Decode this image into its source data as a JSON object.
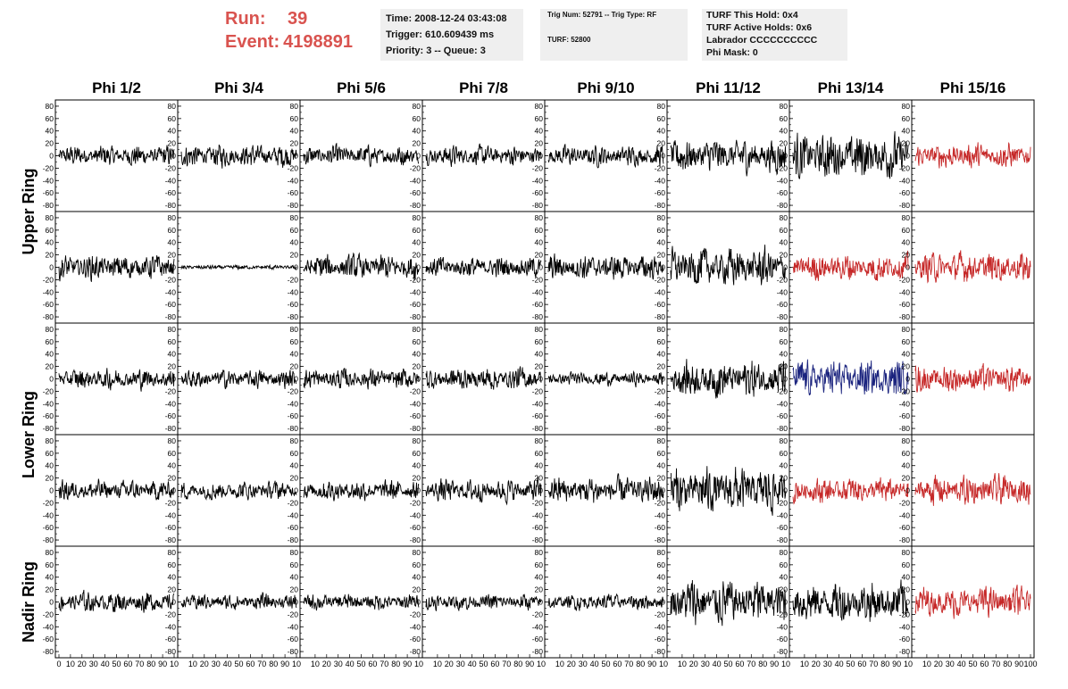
{
  "run_info": {
    "run_label": "Run:",
    "run_value": "39",
    "event_label": "Event:",
    "event_value": "4198891",
    "color": "#d9534f"
  },
  "time_box": {
    "time": "Time: 2008-12-24 03:43:08",
    "trigger": "Trigger: 610.609439 ms",
    "priority": "Priority: 3 -- Queue: 3"
  },
  "trig_box": {
    "trig": "Trig Num: 52791 -- Trig Type: RF",
    "turf": "TURF: 52800"
  },
  "turf_box": {
    "this_hold": "TURF This Hold: 0x4",
    "active_holds": "TURF Active Holds: 0x6",
    "labrador": "Labrador CCCCCCCCCC",
    "phi_mask": "Phi Mask: 0"
  },
  "chart_data": {
    "type": "line",
    "columns": [
      "Phi 1/2",
      "Phi 3/4",
      "Phi 5/6",
      "Phi 7/8",
      "Phi 9/10",
      "Phi 11/12",
      "Phi 13/14",
      "Phi 15/16"
    ],
    "rows": [
      {
        "label": "Upper Ring",
        "span": [
          0,
          1
        ]
      },
      {
        "label": "Lower Ring",
        "span": [
          2,
          3
        ]
      },
      {
        "label": "Nadir Ring",
        "span": [
          4,
          4
        ]
      }
    ],
    "y_ticks": [
      80,
      60,
      40,
      20,
      0,
      -20,
      -40,
      -60,
      -80
    ],
    "ylim": [
      -90,
      90
    ],
    "x_ticks": [
      0,
      10,
      20,
      30,
      40,
      50,
      60,
      70,
      80,
      90,
      100
    ],
    "xlim": [
      0,
      100
    ],
    "x_tick_labels_first": "0 10 20 30 40 50 60 70 80 90 10",
    "x_tick_labels_other": "10 20 30 40 50 60 70 80 90 10",
    "x_tick_labels_last": "10 20 30 40 50 60 70 80 90 100",
    "colors": {
      "black": "#000000",
      "red": "#c62828",
      "blue": "#1a237e"
    },
    "panel_colors": [
      [
        "black",
        "black",
        "black",
        "black",
        "black",
        "black",
        "black",
        "red"
      ],
      [
        "black",
        "black",
        "black",
        "black",
        "black",
        "black",
        "red",
        "red"
      ],
      [
        "black",
        "black",
        "black",
        "black",
        "black",
        "black",
        "blue",
        "red"
      ],
      [
        "black",
        "black",
        "black",
        "black",
        "black",
        "black",
        "red",
        "red"
      ],
      [
        "black",
        "black",
        "black",
        "black",
        "black",
        "black",
        "black",
        "red"
      ]
    ],
    "panel_amplitudes": [
      [
        18,
        20,
        18,
        18,
        18,
        30,
        40,
        22
      ],
      [
        22,
        4,
        22,
        18,
        22,
        34,
        24,
        26
      ],
      [
        18,
        16,
        18,
        20,
        12,
        32,
        32,
        24
      ],
      [
        18,
        16,
        18,
        20,
        24,
        40,
        22,
        26
      ],
      [
        18,
        14,
        14,
        14,
        14,
        40,
        36,
        26
      ]
    ]
  }
}
